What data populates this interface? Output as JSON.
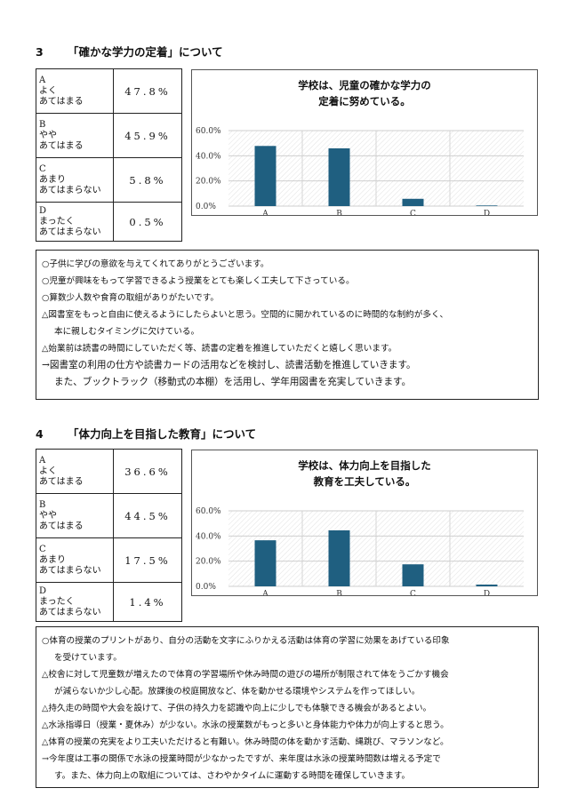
{
  "labels": {
    "options": [
      {
        "letter": "A",
        "line1": "よく",
        "line2": "あてはまる"
      },
      {
        "letter": "B",
        "line1": "やや",
        "line2": "あてはまる"
      },
      {
        "letter": "C",
        "line1": "あまり",
        "line2": "あてはまらない"
      },
      {
        "letter": "D",
        "line1": "まったく",
        "line2": "あてはまらない"
      }
    ]
  },
  "section3": {
    "number": "3",
    "title": "「確かな学力の定着」について",
    "percentages": [
      "47.8%",
      "45.9%",
      "5.8%",
      "0.5%"
    ],
    "chart_title_line1": "学校は、児童の確かな学力の",
    "chart_title_line2": "定着に努めている。",
    "comments": [
      {
        "text": "○子供に学びの意欲を与えてくれてありがとうございます。",
        "indent": false,
        "action": false
      },
      {
        "text": "○児童が興味をもって学習できるよう授業をとても楽しく工夫して下さっている。",
        "indent": false,
        "action": false
      },
      {
        "text": "○算数少人数や食育の取組がありがたいです。",
        "indent": false,
        "action": false
      },
      {
        "text": "△図書室をもっと自由に使えるようにしたらよいと思う。空間的に開かれているのに時間的な制約が多く、",
        "indent": false,
        "action": false
      },
      {
        "text": "本に親しむタイミングに欠けている。",
        "indent": true,
        "action": false
      },
      {
        "text": "△始業前は読書の時間にしていただく等、読書の定着を推進していただくと嬉しく思います。",
        "indent": false,
        "action": false
      },
      {
        "text": "→図書室の利用の仕方や読書カードの活用などを検討し、読書活動を推進していきます。",
        "indent": false,
        "action": true
      },
      {
        "text": "また、ブックトラック（移動式の本棚）を活用し、学年用図書を充実していきます。",
        "indent": true,
        "action": true
      }
    ]
  },
  "section4": {
    "number": "4",
    "title": "「体力向上を目指した教育」について",
    "percentages": [
      "36.6%",
      "44.5%",
      "17.5%",
      "1.4%"
    ],
    "chart_title_line1": "学校は、体力向上を目指した",
    "chart_title_line2": "教育を工夫している。",
    "comments": [
      {
        "text": "○体育の授業のプリントがあり、自分の活動を文字にふりかえる活動は体育の学習に効果をあげている印象",
        "indent": false,
        "action": false
      },
      {
        "text": "を受けています。",
        "indent": true,
        "action": false
      },
      {
        "text": "△校舎に対して児童数が増えたので体育の学習場所や休み時間の遊びの場所が制限されて体をうごかす機会",
        "indent": false,
        "action": false
      },
      {
        "text": "が減らないか少し心配。放課後の校庭開放など、体を動かせる環境やシステムを作ってほしい。",
        "indent": true,
        "action": false
      },
      {
        "text": "△持久走の時間や大会を設けて、子供の持久力を認識や向上に少しでも体験できる機会があるとよい。",
        "indent": false,
        "action": false
      },
      {
        "text": "△水泳指導日（授業・夏休み）が少ない。水泳の授業数がもっと多いと身体能力や体力が向上すると思う。",
        "indent": false,
        "action": false
      },
      {
        "text": "△体育の授業の充実をより工夫いただけると有難い。休み時間の体を動かす活動、縄跳び、マラソンなど。",
        "indent": false,
        "action": false
      },
      {
        "text": "→今年度は工事の関係で水泳の授業時間が少なかったですが、来年度は水泳の授業時間数は増える予定で",
        "indent": false,
        "action": false
      },
      {
        "text": "す。また、体力向上の取組については、さわやかタイムに運動する時間を確保していきます。",
        "indent": true,
        "action": false
      }
    ]
  },
  "chart_data": [
    {
      "type": "bar",
      "title": "学校は、児童の確かな学力の定着に努めている。",
      "categories": [
        "A",
        "B",
        "C",
        "D"
      ],
      "values": [
        47.8,
        45.9,
        5.8,
        0.5
      ],
      "yticks": [
        "0.0%",
        "20.0%",
        "40.0%",
        "60.0%"
      ],
      "ylim": [
        0,
        60
      ],
      "color": "#1f5f80",
      "grid": true,
      "legend": "none"
    },
    {
      "type": "bar",
      "title": "学校は、体力向上を目指した教育を工夫している。",
      "categories": [
        "A",
        "B",
        "C",
        "D"
      ],
      "values": [
        36.6,
        44.5,
        17.5,
        1.4
      ],
      "yticks": [
        "0.0%",
        "20.0%",
        "40.0%",
        "60.0%"
      ],
      "ylim": [
        0,
        60
      ],
      "color": "#1f5f80",
      "grid": true,
      "legend": "none"
    }
  ]
}
